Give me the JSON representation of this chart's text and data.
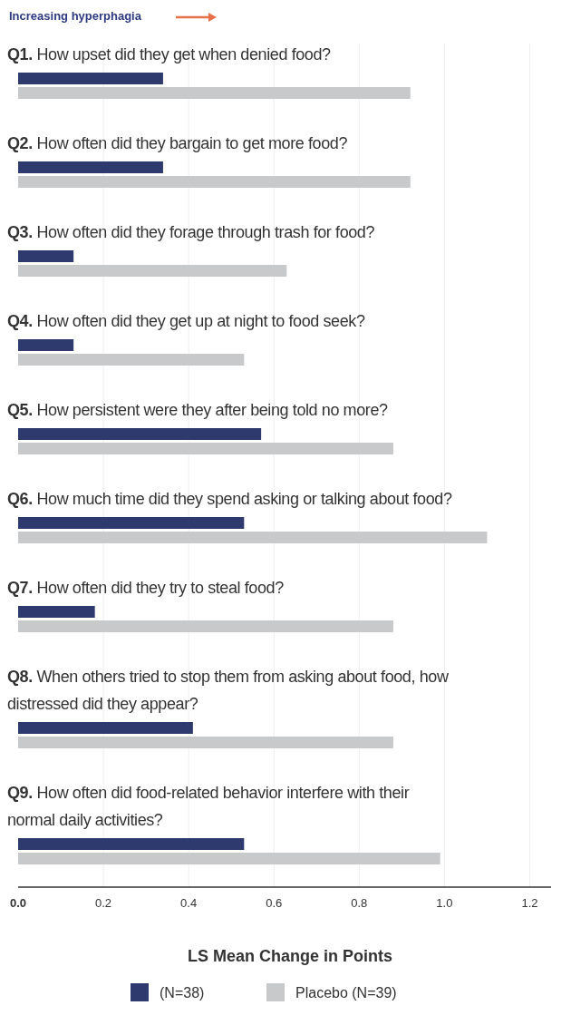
{
  "chart_data": {
    "type": "bar",
    "orientation": "horizontal",
    "xlabel": "LS Mean Change in Points",
    "annotations": [
      "Increasing hyperphagia"
    ],
    "categories": [
      "Q1. How upset did they get when denied food?",
      "Q2. How often did they bargain to get more food?",
      "Q3. How often did they forage through trash for food?",
      "Q4. How often did they get up at night to food seek?",
      "Q5. How persistent were they after being told no more?",
      "Q6. How much time did they spend asking or talking about food?",
      "Q7. How often did they try to steal food?",
      "Q8. When others tried to stop them from asking about food, how distressed did they appear?",
      "Q9. How often did food-related behavior interfere with their normal daily activities?"
    ],
    "series": [
      {
        "name": "(N=38)",
        "color": "#2e3a6e",
        "values": [
          0.34,
          0.34,
          0.13,
          0.13,
          0.57,
          0.53,
          0.18,
          0.41,
          0.53
        ]
      },
      {
        "name": "Placebo (N=39)",
        "color": "#c8c9cb",
        "values": [
          0.92,
          0.92,
          0.63,
          0.53,
          0.88,
          1.1,
          0.88,
          0.88,
          0.99
        ]
      }
    ],
    "xlim": [
      0,
      1.25
    ],
    "xticks": [
      {
        "value": 0,
        "label": "0.0"
      },
      0.2,
      0.4,
      0.6,
      0.8,
      {
        "value": 1,
        "label": "1.0"
      },
      1.2
    ],
    "grid": "x",
    "legend": "bottom"
  }
}
